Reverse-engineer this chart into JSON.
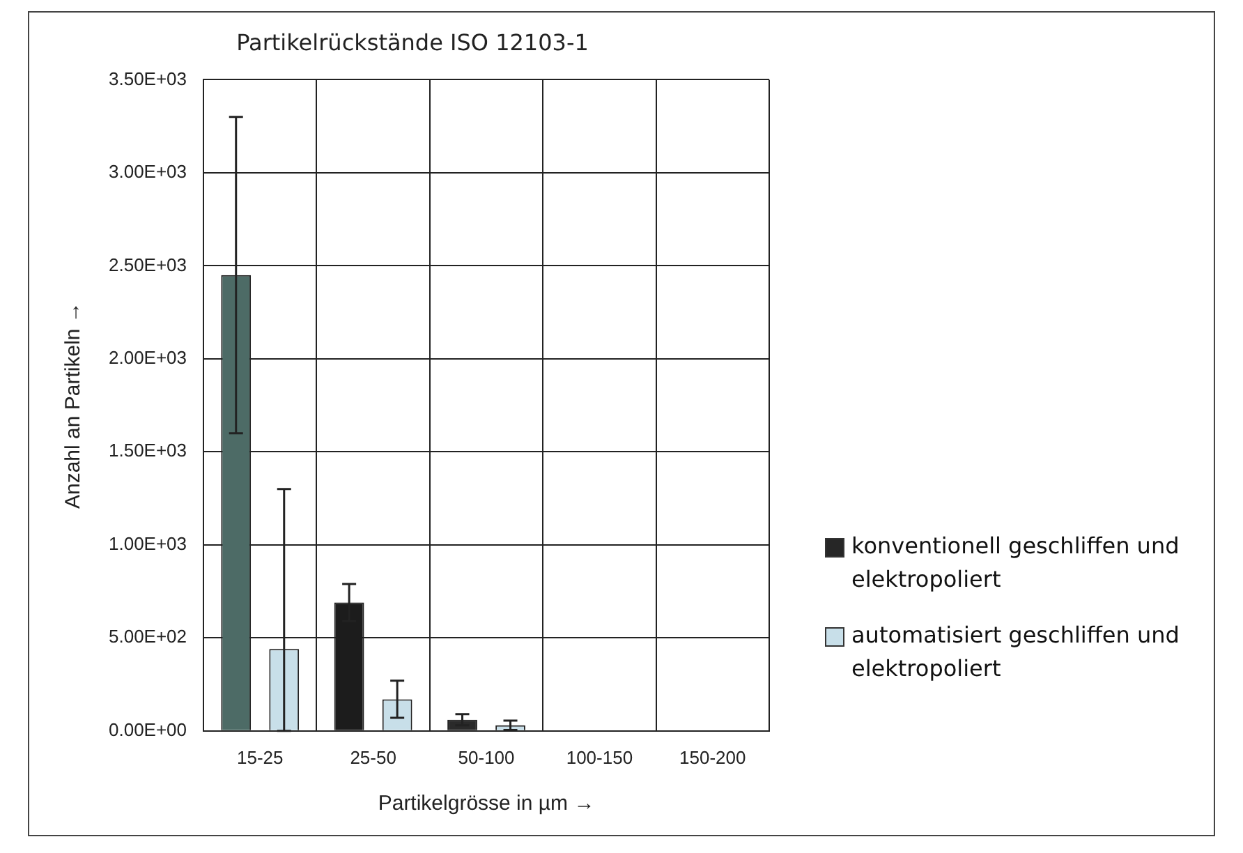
{
  "chart_data": {
    "type": "bar",
    "title": "Partikelrückstände ISO 12103-1",
    "xlabel": "Partikelgrösse in µm →",
    "ylabel": "Anzahl an Partikeln →",
    "categories": [
      "15-25",
      "25-50",
      "50-100",
      "100-150",
      "150-200"
    ],
    "series": [
      {
        "name": "konventionell geschliffen und elektropoliert",
        "color": "#262626",
        "colors": [
          "#4d6b66",
          "#1c1c1c",
          "#2a2a2a",
          "#2a2a2a",
          "#2a2a2a"
        ],
        "values": [
          2450,
          690,
          60,
          null,
          0
        ],
        "errors": [
          850,
          100,
          30,
          null,
          null
        ]
      },
      {
        "name": "automatisiert geschliffen und elektropoliert",
        "color": "#c8dfe9",
        "values": [
          440,
          170,
          30,
          null,
          0
        ],
        "errors": [
          [
            0,
            1300
          ],
          100,
          25,
          null,
          null
        ]
      }
    ],
    "ylim": [
      0,
      3500
    ],
    "yticks": [
      {
        "value": 0,
        "label": "0.00E+00"
      },
      {
        "value": 500,
        "label": "5.00E+02"
      },
      {
        "value": 1000,
        "label": "1.00E+03"
      },
      {
        "value": 1500,
        "label": "1.50E+03"
      },
      {
        "value": 2000,
        "label": "2.00E+03"
      },
      {
        "value": 2500,
        "label": "2.50E+03"
      },
      {
        "value": 3000,
        "label": "3.00E+03"
      },
      {
        "value": 3500,
        "label": "3.50E+03"
      }
    ],
    "grid": true,
    "legend": "right"
  }
}
